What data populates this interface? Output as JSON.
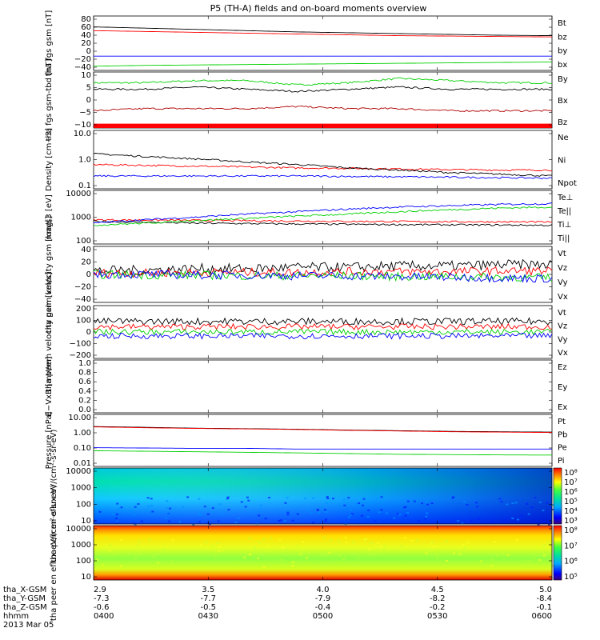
{
  "title": "P5 (TH-A) fields and on-board moments overview",
  "date_label": "2013 Mar 05",
  "ephemeris": {
    "row_labels": [
      "tha_X-GSM",
      "tha_Y-GSM",
      "tha_Z-GSM",
      "hhmm"
    ],
    "columns": [
      {
        "x": "2.9",
        "y": "-7.3",
        "z": "-0.6",
        "t": "0400"
      },
      {
        "x": "3.5",
        "y": "-7.7",
        "z": "-0.5",
        "t": "0430"
      },
      {
        "x": "4.0",
        "y": "-7.9",
        "z": "-0.4",
        "t": "0500"
      },
      {
        "x": "4.5",
        "y": "-8.2",
        "z": "-0.2",
        "t": "0530"
      },
      {
        "x": "5.0",
        "y": "-8.4",
        "z": "-0.1",
        "t": "0600"
      }
    ]
  },
  "colors": {
    "black": "#000000",
    "red": "#ff0000",
    "green": "#00d000",
    "blue": "#0000ff",
    "darkred": "#b00000"
  },
  "chart_data": [
    {
      "type": "line",
      "ylabel": "tha fgs gsm [nT]",
      "ylim": [
        -40,
        90
      ],
      "yticks": [
        "80",
        "60",
        "40",
        "20",
        "0",
        "−20",
        "−40"
      ],
      "series": [
        {
          "name": "Bt",
          "color": "#000000",
          "values": [
            64,
            61,
            58,
            55,
            52,
            50,
            48,
            46,
            44,
            43
          ]
        },
        {
          "name": "bz",
          "color": "#ff0000",
          "values": [
            55,
            53,
            51,
            49,
            47,
            45,
            43,
            42,
            41,
            40
          ]
        },
        {
          "name": "by",
          "color": "#0000ff",
          "values": [
            -6,
            -6,
            -6,
            -6,
            -6,
            -6,
            -6,
            -6,
            -6,
            -6
          ]
        },
        {
          "name": "bx",
          "color": "#00d000",
          "values": [
            -30,
            -28,
            -27,
            -26,
            -25,
            -24,
            -23,
            -22,
            -21,
            -20
          ]
        }
      ]
    },
    {
      "type": "line",
      "ylabel": "tha fgs gsm-tbd [nT]",
      "ylim": [
        -16,
        10
      ],
      "yticks": [
        "10",
        "5",
        "0",
        "−5",
        "−10"
      ],
      "series": [
        {
          "name": "By",
          "color": "#00d000",
          "values": [
            5,
            5,
            6,
            6,
            4,
            5,
            7,
            6,
            5,
            5
          ]
        },
        {
          "name": "Bx",
          "color": "#000000",
          "values": [
            2,
            2,
            3,
            2,
            1,
            2,
            3,
            2,
            2,
            2
          ]
        },
        {
          "name": "Bz",
          "color": "#b00000",
          "values": [
            -8,
            -7,
            -7,
            -7,
            -6,
            -7,
            -7,
            -8,
            -8,
            -8
          ]
        }
      ],
      "fill_band": {
        "y0": -16,
        "y1": -14,
        "color": "#ff0000"
      }
    },
    {
      "type": "line",
      "ylabel": "Density [cm−3]",
      "scale": "log",
      "ylim": [
        0.1,
        15
      ],
      "yticks": [
        "10.0",
        "1.0",
        "0.1"
      ],
      "series": [
        {
          "name": "Ne",
          "color": "#ff0000",
          "values": [
            0.8,
            0.75,
            0.7,
            0.65,
            0.6,
            0.58,
            0.55,
            0.52,
            0.5,
            0.5
          ]
        },
        {
          "name": "Ni",
          "color": "#000000",
          "values": [
            2.0,
            1.6,
            1.3,
            1.0,
            0.8,
            0.6,
            0.5,
            0.4,
            0.35,
            0.3
          ]
        },
        {
          "name": "Npot",
          "color": "#0000ff",
          "values": [
            0.3,
            0.3,
            0.3,
            0.3,
            0.3,
            0.29,
            0.28,
            0.27,
            0.26,
            0.25
          ]
        }
      ]
    },
    {
      "type": "line",
      "ylabel": "mag[3 [eV]",
      "scale": "log",
      "ylim": [
        100,
        10000
      ],
      "yticks": [
        "10000",
        "1000",
        "100"
      ],
      "series": [
        {
          "name": "Te⊥",
          "color": "#ff0000",
          "values": [
            800,
            780,
            760,
            740,
            720,
            700,
            690,
            680,
            670,
            660
          ]
        },
        {
          "name": "Te||",
          "color": "#000000",
          "values": [
            700,
            650,
            600,
            580,
            560,
            540,
            530,
            520,
            510,
            500
          ]
        },
        {
          "name": "Ti⊥",
          "color": "#0000ff",
          "values": [
            600,
            800,
            1000,
            1300,
            1600,
            2000,
            2400,
            2700,
            3000,
            3200
          ]
        },
        {
          "name": "Ti||",
          "color": "#00d000",
          "values": [
            500,
            600,
            750,
            900,
            1100,
            1300,
            1600,
            1900,
            2200,
            2400
          ]
        }
      ]
    },
    {
      "type": "line",
      "ylabel": "tha peim velocity gsm [km/s]",
      "ylim": [
        -40,
        40
      ],
      "yticks": [
        "40",
        "20",
        "0",
        "−20",
        "−40"
      ],
      "series": [
        {
          "name": "Vt",
          "color": "#000000",
          "values": [
            5,
            6,
            8,
            8,
            10,
            10,
            12,
            12,
            14,
            14
          ]
        },
        {
          "name": "Vz",
          "color": "#ff0000",
          "values": [
            2,
            2,
            3,
            3,
            3,
            4,
            4,
            4,
            5,
            5
          ]
        },
        {
          "name": "Vy",
          "color": "#00d000",
          "values": [
            0,
            -1,
            -1,
            -2,
            -2,
            -2,
            -3,
            -3,
            -4,
            -5
          ]
        },
        {
          "name": "Vx",
          "color": "#0000ff",
          "values": [
            0,
            0,
            -1,
            -1,
            -2,
            -2,
            -3,
            -4,
            -5,
            -6
          ]
        }
      ]
    },
    {
      "type": "line",
      "ylabel": "tha peem velocity gsm [km/s]",
      "ylim": [
        -200,
        200
      ],
      "yticks": [
        "200",
        "100",
        "0",
        "−100",
        "−200"
      ],
      "series": [
        {
          "name": "Vt",
          "color": "#000000",
          "values": [
            80,
            80,
            80,
            80,
            80,
            80,
            80,
            80,
            80,
            80
          ]
        },
        {
          "name": "Vz",
          "color": "#ff0000",
          "values": [
            40,
            40,
            40,
            40,
            40,
            40,
            40,
            40,
            40,
            40
          ]
        },
        {
          "name": "Vy",
          "color": "#00d000",
          "values": [
            0,
            0,
            0,
            0,
            0,
            0,
            0,
            0,
            0,
            0
          ]
        },
        {
          "name": "Vx",
          "color": "#0000ff",
          "values": [
            -30,
            -30,
            -30,
            -30,
            -30,
            -30,
            -30,
            -30,
            -30,
            -30
          ]
        }
      ]
    },
    {
      "type": "line",
      "ylabel": "E−VxB [mV/m]",
      "ylim": [
        0,
        1
      ],
      "yticks": [
        "1.0",
        "0.8",
        "0.6",
        "0.4",
        "0.2",
        "0.0"
      ],
      "series": [
        {
          "name": "Ez",
          "color": "#ff0000",
          "values": []
        },
        {
          "name": "Ey",
          "color": "#00d000",
          "values": []
        },
        {
          "name": "Ex",
          "color": "#0000ff",
          "values": []
        }
      ]
    },
    {
      "type": "line",
      "ylabel": "Pressure [nPa]",
      "scale": "log",
      "ylim": [
        0.01,
        10
      ],
      "yticks": [
        "10.00",
        "1.00",
        "0.10",
        "0.01"
      ],
      "series": [
        {
          "name": "Pt",
          "color": "#000000",
          "values": [
            2.0,
            1.8,
            1.6,
            1.5,
            1.4,
            1.25,
            1.15,
            1.05,
            1.0,
            0.95
          ]
        },
        {
          "name": "Pb",
          "color": "#ff0000",
          "values": [
            1.9,
            1.7,
            1.55,
            1.45,
            1.35,
            1.2,
            1.1,
            1.0,
            0.95,
            0.9
          ]
        },
        {
          "name": "Pe",
          "color": "#00d000",
          "values": [
            0.08,
            0.075,
            0.07,
            0.065,
            0.06,
            0.055,
            0.05,
            0.048,
            0.046,
            0.045
          ]
        },
        {
          "name": "Pi",
          "color": "#0000ff",
          "values": [
            0.12,
            0.115,
            0.11,
            0.11,
            0.1,
            0.1,
            0.1,
            0.1,
            0.1,
            0.1
          ]
        }
      ]
    },
    {
      "type": "heatmap",
      "ylabel": "tha peir en eflux eV/(cm²-s-sr-eV)",
      "scale": "log",
      "ylim": [
        5,
        30000
      ],
      "yticks": [
        "10000",
        "1000",
        "100",
        "10"
      ],
      "colorbar_ticks": [
        "10⁸",
        "10⁷",
        "10⁶",
        "10⁵",
        "10⁴",
        "10³"
      ]
    },
    {
      "type": "heatmap",
      "ylabel": "tha peer en eflux eV/(cm²-s-sr-eV)",
      "scale": "log",
      "ylim": [
        7,
        30000
      ],
      "yticks": [
        "10000",
        "1000",
        "100",
        "10"
      ],
      "colorbar_ticks": [
        "10⁸",
        "10⁷",
        "10⁶",
        "10⁵"
      ]
    }
  ]
}
